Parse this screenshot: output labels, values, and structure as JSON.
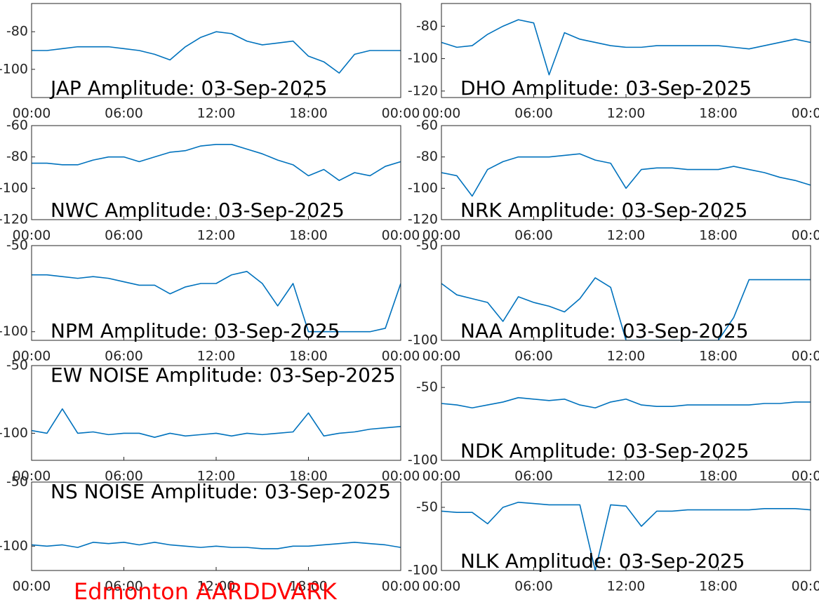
{
  "chart_data": [
    {
      "type": "line",
      "title": "JAP Amplitude: 03-Sep-2025",
      "x": [
        0,
        1,
        2,
        3,
        4,
        5,
        6,
        7,
        8,
        9,
        10,
        11,
        12,
        13,
        14,
        15,
        16,
        17,
        18,
        19,
        20,
        21,
        22,
        23,
        24
      ],
      "xlim": [
        0,
        24
      ],
      "xticks": [
        {
          "value": 0,
          "label": "00:00"
        },
        {
          "value": 6,
          "label": "06:00"
        },
        {
          "value": 12,
          "label": "12:00"
        },
        {
          "value": 18,
          "label": "18:00"
        },
        {
          "value": 24,
          "label": "00:00"
        }
      ],
      "ylim": [
        -115,
        -65
      ],
      "yticks": [
        -100,
        -80
      ],
      "series": [
        {
          "color": "#0072bd",
          "values": [
            -90,
            -90,
            -89,
            -88,
            -88,
            -88,
            -89,
            -90,
            -92,
            -95,
            -88,
            -83,
            -80,
            -81,
            -85,
            -87,
            -86,
            -85,
            -93,
            -96,
            -102,
            -92,
            -90,
            -90,
            -90
          ]
        }
      ]
    },
    {
      "type": "line",
      "title": "DHO Amplitude: 03-Sep-2025",
      "x": [
        0,
        1,
        2,
        3,
        4,
        5,
        6,
        7,
        8,
        9,
        10,
        11,
        12,
        13,
        14,
        15,
        16,
        17,
        18,
        19,
        20,
        21,
        22,
        23,
        24
      ],
      "xlim": [
        0,
        24
      ],
      "xticks": [
        {
          "value": 0,
          "label": "00:00"
        },
        {
          "value": 6,
          "label": "06:00"
        },
        {
          "value": 12,
          "label": "12:00"
        },
        {
          "value": 18,
          "label": "18:00"
        },
        {
          "value": 24,
          "label": "00:00"
        }
      ],
      "ylim": [
        -124,
        -66
      ],
      "yticks": [
        -120,
        -100,
        -80
      ],
      "series": [
        {
          "color": "#0072bd",
          "values": [
            -90,
            -93,
            -92,
            -85,
            -80,
            -76,
            -78,
            -110,
            -84,
            -88,
            -90,
            -92,
            -93,
            -93,
            -92,
            -92,
            -92,
            -92,
            -92,
            -93,
            -94,
            -92,
            -90,
            -88,
            -90
          ]
        }
      ]
    },
    {
      "type": "line",
      "title": "NWC Amplitude: 03-Sep-2025",
      "x": [
        0,
        1,
        2,
        3,
        4,
        5,
        6,
        7,
        8,
        9,
        10,
        11,
        12,
        13,
        14,
        15,
        16,
        17,
        18,
        19,
        20,
        21,
        22,
        23,
        24
      ],
      "xlim": [
        0,
        24
      ],
      "xticks": [
        {
          "value": 0,
          "label": "00:00"
        },
        {
          "value": 6,
          "label": "06:00"
        },
        {
          "value": 12,
          "label": "12:00"
        },
        {
          "value": 18,
          "label": "18:00"
        },
        {
          "value": 24,
          "label": "00:00"
        }
      ],
      "ylim": [
        -120,
        -60
      ],
      "yticks": [
        -120,
        -100,
        -80,
        -60
      ],
      "series": [
        {
          "color": "#0072bd",
          "values": [
            -84,
            -84,
            -85,
            -85,
            -82,
            -80,
            -80,
            -83,
            -80,
            -77,
            -76,
            -73,
            -72,
            -72,
            -75,
            -78,
            -82,
            -85,
            -92,
            -88,
            -95,
            -90,
            -92,
            -86,
            -83
          ]
        }
      ]
    },
    {
      "type": "line",
      "title": "NRK Amplitude: 03-Sep-2025",
      "x": [
        0,
        1,
        2,
        3,
        4,
        5,
        6,
        7,
        8,
        9,
        10,
        11,
        12,
        13,
        14,
        15,
        16,
        17,
        18,
        19,
        20,
        21,
        22,
        23,
        24
      ],
      "xlim": [
        0,
        24
      ],
      "xticks": [
        {
          "value": 0,
          "label": "00:00"
        },
        {
          "value": 6,
          "label": "06:00"
        },
        {
          "value": 12,
          "label": "12:00"
        },
        {
          "value": 18,
          "label": "18:00"
        },
        {
          "value": 24,
          "label": "00:00"
        }
      ],
      "ylim": [
        -120,
        -60
      ],
      "yticks": [
        -120,
        -100,
        -80,
        -60
      ],
      "series": [
        {
          "color": "#0072bd",
          "values": [
            -90,
            -92,
            -105,
            -88,
            -83,
            -80,
            -80,
            -80,
            -79,
            -78,
            -82,
            -84,
            -100,
            -88,
            -87,
            -87,
            -88,
            -88,
            -88,
            -86,
            -88,
            -90,
            -93,
            -95,
            -98
          ]
        }
      ]
    },
    {
      "type": "line",
      "title": "NPM Amplitude: 03-Sep-2025",
      "x": [
        0,
        1,
        2,
        3,
        4,
        5,
        6,
        7,
        8,
        9,
        10,
        11,
        12,
        13,
        14,
        15,
        16,
        17,
        18,
        19,
        20,
        21,
        22,
        23,
        24
      ],
      "xlim": [
        0,
        24
      ],
      "xticks": [
        {
          "value": 0,
          "label": "00:00"
        },
        {
          "value": 6,
          "label": "06:00"
        },
        {
          "value": 12,
          "label": "12:00"
        },
        {
          "value": 18,
          "label": "18:00"
        },
        {
          "value": 24,
          "label": "00:00"
        }
      ],
      "ylim": [
        -105,
        -50
      ],
      "yticks": [
        -100,
        -50
      ],
      "series": [
        {
          "color": "#0072bd",
          "values": [
            -67,
            -67,
            -68,
            -69,
            -68,
            -69,
            -71,
            -73,
            -73,
            -78,
            -74,
            -72,
            -72,
            -67,
            -65,
            -72,
            -85,
            -72,
            -100,
            -100,
            -100,
            -100,
            -100,
            -98,
            -72
          ]
        }
      ]
    },
    {
      "type": "line",
      "title": "NAA Amplitude: 03-Sep-2025",
      "x": [
        0,
        1,
        2,
        3,
        4,
        5,
        6,
        7,
        8,
        9,
        10,
        11,
        12,
        13,
        14,
        15,
        16,
        17,
        18,
        19,
        20,
        21,
        22,
        23,
        24
      ],
      "xlim": [
        0,
        24
      ],
      "xticks": [
        {
          "value": 0,
          "label": "00:00"
        },
        {
          "value": 6,
          "label": "06:00"
        },
        {
          "value": 12,
          "label": "12:00"
        },
        {
          "value": 18,
          "label": "18:00"
        },
        {
          "value": 24,
          "label": "00:00"
        }
      ],
      "ylim": [
        -100,
        -50
      ],
      "yticks": [
        -100,
        -50
      ],
      "series": [
        {
          "color": "#0072bd",
          "values": [
            -70,
            -76,
            -78,
            -80,
            -90,
            -77,
            -80,
            -82,
            -85,
            -78,
            -67,
            -72,
            -100,
            -100,
            -100,
            -100,
            -100,
            -100,
            -100,
            -88,
            -68,
            -68,
            -68,
            -68,
            -68
          ]
        }
      ]
    },
    {
      "type": "line",
      "title": "EW NOISE Amplitude: 03-Sep-2025",
      "x": [
        0,
        1,
        2,
        3,
        4,
        5,
        6,
        7,
        8,
        9,
        10,
        11,
        12,
        13,
        14,
        15,
        16,
        17,
        18,
        19,
        20,
        21,
        22,
        23,
        24
      ],
      "xlim": [
        0,
        24
      ],
      "xticks": [
        {
          "value": 0,
          "label": "00:00"
        },
        {
          "value": 6,
          "label": "06:00"
        },
        {
          "value": 12,
          "label": "12:00"
        },
        {
          "value": 18,
          "label": "18:00"
        },
        {
          "value": 24,
          "label": "00:00"
        }
      ],
      "ylim": [
        -120,
        -50
      ],
      "yticks": [
        -100,
        -50
      ],
      "series": [
        {
          "color": "#0072bd",
          "values": [
            -98,
            -100,
            -82,
            -100,
            -99,
            -101,
            -100,
            -100,
            -103,
            -100,
            -102,
            -101,
            -100,
            -102,
            -100,
            -101,
            -100,
            -99,
            -85,
            -102,
            -100,
            -99,
            -97,
            -96,
            -95
          ]
        }
      ]
    },
    {
      "type": "line",
      "title": "NDK Amplitude: 03-Sep-2025",
      "x": [
        0,
        1,
        2,
        3,
        4,
        5,
        6,
        7,
        8,
        9,
        10,
        11,
        12,
        13,
        14,
        15,
        16,
        17,
        18,
        19,
        20,
        21,
        22,
        23,
        24
      ],
      "xlim": [
        0,
        24
      ],
      "xticks": [
        {
          "value": 0,
          "label": "00:00"
        },
        {
          "value": 6,
          "label": "06:00"
        },
        {
          "value": 12,
          "label": "12:00"
        },
        {
          "value": 18,
          "label": "18:00"
        },
        {
          "value": 24,
          "label": "00:00"
        }
      ],
      "ylim": [
        -100,
        -35
      ],
      "yticks": [
        -100,
        -50
      ],
      "series": [
        {
          "color": "#0072bd",
          "values": [
            -61,
            -62,
            -64,
            -62,
            -60,
            -57,
            -58,
            -59,
            -58,
            -62,
            -64,
            -60,
            -58,
            -62,
            -63,
            -63,
            -62,
            -62,
            -62,
            -62,
            -62,
            -61,
            -61,
            -60,
            -60
          ]
        }
      ]
    },
    {
      "type": "line",
      "title": "NS NOISE Amplitude: 03-Sep-2025",
      "x": [
        0,
        1,
        2,
        3,
        4,
        5,
        6,
        7,
        8,
        9,
        10,
        11,
        12,
        13,
        14,
        15,
        16,
        17,
        18,
        19,
        20,
        21,
        22,
        23,
        24
      ],
      "xlim": [
        0,
        24
      ],
      "xticks": [
        {
          "value": 0,
          "label": "00:00"
        },
        {
          "value": 6,
          "label": "06:00"
        },
        {
          "value": 12,
          "label": "12:00"
        },
        {
          "value": 18,
          "label": "18:00"
        },
        {
          "value": 24,
          "label": "00:00"
        }
      ],
      "ylim": [
        -119,
        -50
      ],
      "yticks": [
        -100,
        -50
      ],
      "series": [
        {
          "color": "#0072bd",
          "values": [
            -99,
            -100,
            -99,
            -101,
            -97,
            -98,
            -97,
            -99,
            -97,
            -99,
            -100,
            -101,
            -100,
            -101,
            -101,
            -102,
            -102,
            -100,
            -100,
            -99,
            -98,
            -97,
            -98,
            -99,
            -101
          ]
        }
      ]
    },
    {
      "type": "line",
      "title": "NLK Amplitude: 03-Sep-2025",
      "x": [
        0,
        1,
        2,
        3,
        4,
        5,
        6,
        7,
        8,
        9,
        10,
        11,
        12,
        13,
        14,
        15,
        16,
        17,
        18,
        19,
        20,
        21,
        22,
        23,
        24
      ],
      "xlim": [
        0,
        24
      ],
      "xticks": [
        {
          "value": 0,
          "label": "00:00"
        },
        {
          "value": 6,
          "label": "06:00"
        },
        {
          "value": 12,
          "label": "12:00"
        },
        {
          "value": 18,
          "label": "18:00"
        },
        {
          "value": 24,
          "label": "00:00"
        }
      ],
      "ylim": [
        -100,
        -30
      ],
      "yticks": [
        -100,
        -50
      ],
      "series": [
        {
          "color": "#0072bd",
          "values": [
            -53,
            -54,
            -54,
            -63,
            -50,
            -46,
            -47,
            -48,
            -48,
            -48,
            -100,
            -48,
            -49,
            -65,
            -53,
            -53,
            -52,
            -52,
            -52,
            -52,
            -52,
            -51,
            -51,
            -51,
            -52
          ]
        }
      ]
    }
  ],
  "footer": "Edmonton AARDDVARK"
}
